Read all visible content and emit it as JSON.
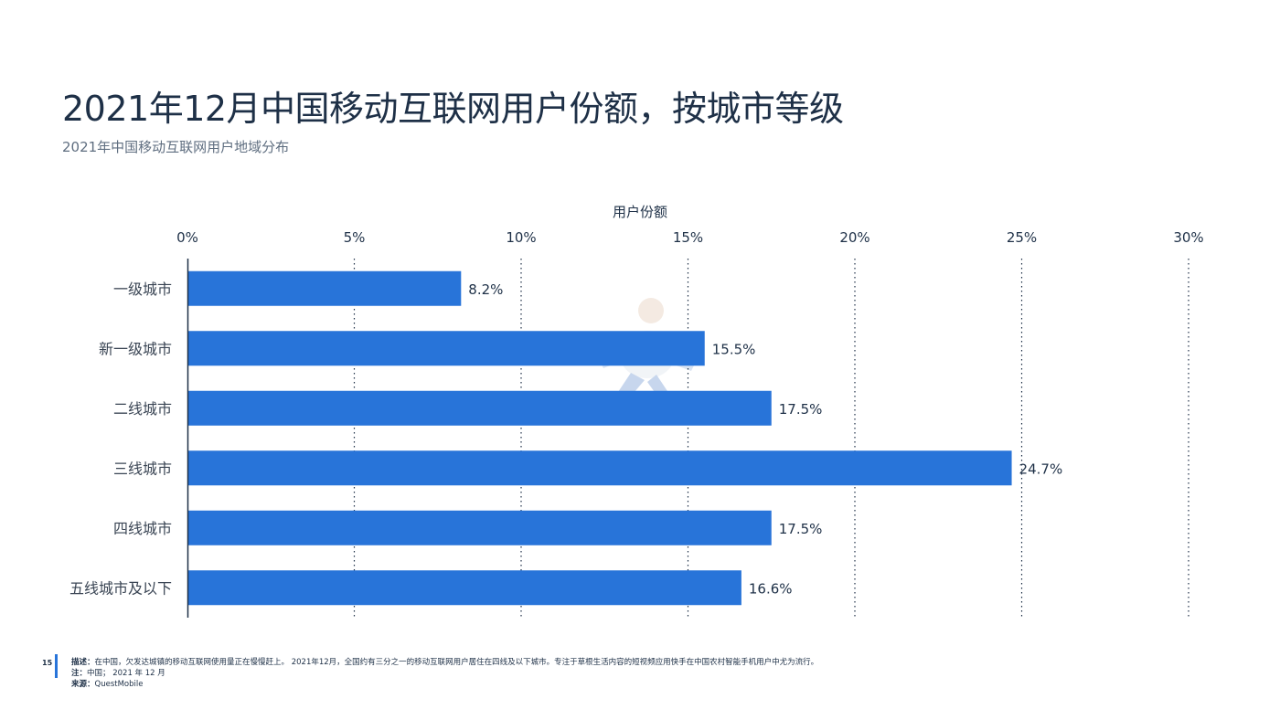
{
  "header": {
    "title": "2021年12月中国移动互联网用户份额，按城市等级",
    "subtitle": "2021年中国移动互联网用户地域分布"
  },
  "chart_data": {
    "type": "bar",
    "orientation": "horizontal",
    "axis_title": "用户份额",
    "xlim": [
      0,
      30
    ],
    "ticks": [
      "0%",
      "5%",
      "10%",
      "15%",
      "20%",
      "25%",
      "30%"
    ],
    "tick_values": [
      0,
      5,
      10,
      15,
      20,
      25,
      30
    ],
    "categories": [
      "一级城市",
      "新一级城市",
      "二线城市",
      "三线城市",
      "四线城市",
      "五线城市及以下"
    ],
    "values": [
      8.2,
      15.5,
      17.5,
      24.7,
      17.5,
      16.6
    ],
    "value_labels": [
      "8.2%",
      "15.5%",
      "17.5%",
      "24.7%",
      "17.5%",
      "16.6%"
    ],
    "bar_color": "#2874d9",
    "grid": "dotted vertical",
    "legend": "none"
  },
  "footer": {
    "page_number": "15",
    "desc_label": "描述：",
    "desc_text": "在中国，欠发达城镇的移动互联网使用量正在慢慢赶上。 2021年12月，全国约有三分之一的移动互联网用户居住在四线及以下城市。专注于草根生活内容的短视频应用快手在中国农村智能手机用户中尤为流行。",
    "note_label": "注：",
    "note_text": "中国； 2021 年 12 月",
    "source_label": "来源：",
    "source_text": "QuestMobile"
  }
}
